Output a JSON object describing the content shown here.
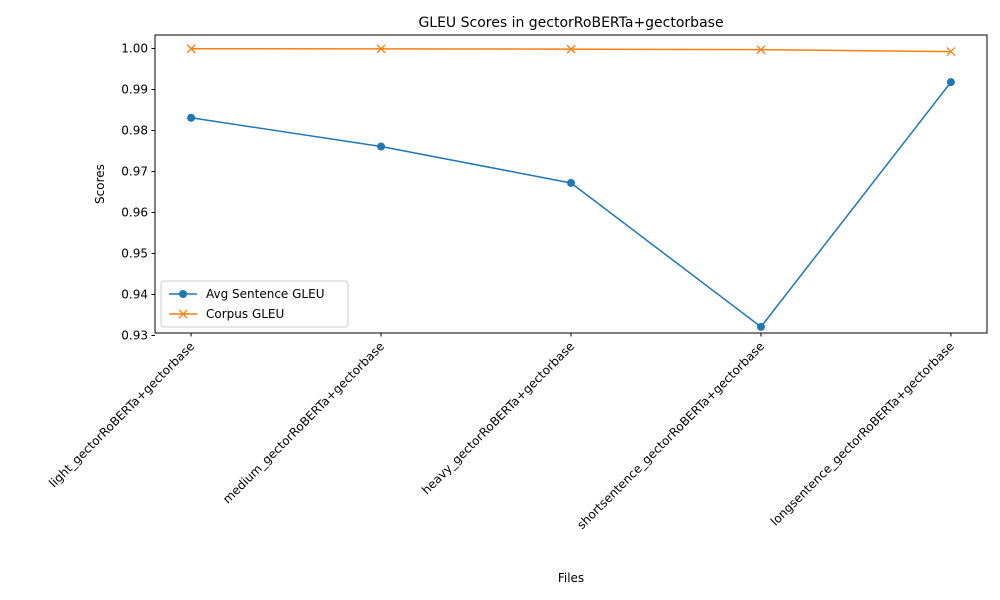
{
  "chart_data": {
    "type": "line",
    "title": "GLEU Scores in gectorRoBERTa+gectorbase",
    "xlabel": "Files",
    "ylabel": "Scores",
    "categories": [
      "light_gectorRoBERTa+gectorbase",
      "medium_gectorRoBERTa+gectorbase",
      "heavy_gectorRoBERTa+gectorbase",
      "shortsentence_gectorRoBERTa+gectorbase",
      "longsentence_gectorRoBERTa+gectorbase"
    ],
    "series": [
      {
        "name": "Avg Sentence GLEU",
        "values": [
          0.9831,
          0.9761,
          0.9672,
          0.9321,
          0.9918
        ],
        "color": "#1f77b4",
        "marker": "circle"
      },
      {
        "name": "Corpus GLEU",
        "values": [
          0.99995,
          0.99992,
          0.99985,
          0.99972,
          0.99925
        ],
        "color": "#ff7f0e",
        "marker": "x"
      }
    ],
    "yticks": [
      "0.93",
      "0.94",
      "0.95",
      "0.96",
      "0.97",
      "0.98",
      "0.99",
      "1.00"
    ],
    "ytick_values": [
      0.93,
      0.94,
      0.95,
      0.96,
      0.97,
      0.98,
      0.99,
      1.0
    ],
    "ylim": [
      0.9306,
      1.0033
    ],
    "grid": false,
    "legend_position": "lower-left"
  }
}
